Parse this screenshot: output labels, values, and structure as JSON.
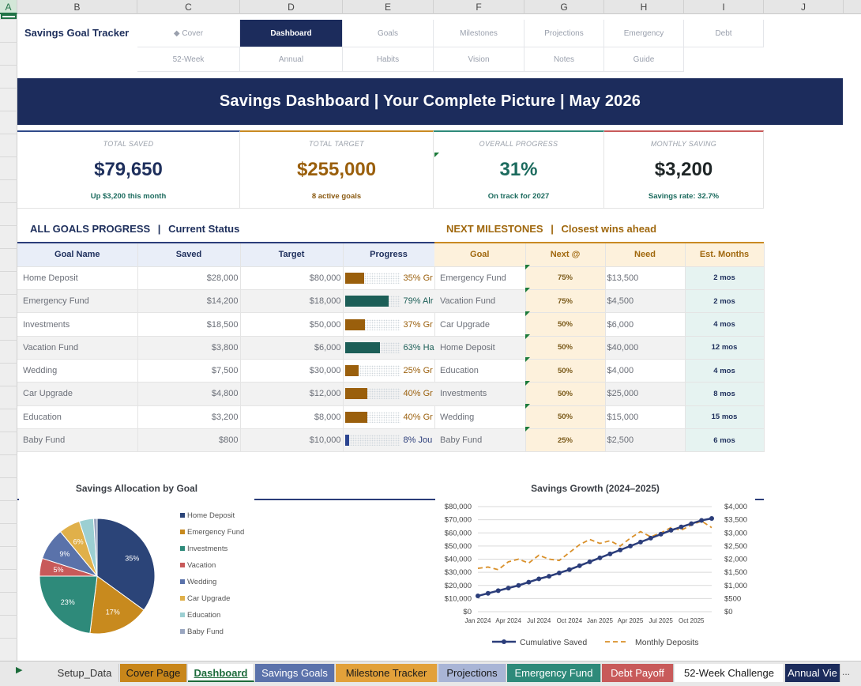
{
  "columns": [
    "A",
    "B",
    "C",
    "D",
    "E",
    "F",
    "G",
    "H",
    "I",
    "J"
  ],
  "brand": "Savings Goal Tracker",
  "nav": {
    "row1": [
      "◆ Cover",
      "Dashboard",
      "Goals",
      "Milestones",
      "Projections",
      "Emergency",
      "Debt"
    ],
    "row2": [
      "52-Week",
      "Annual",
      "Habits",
      "Vision",
      "Notes",
      "Guide"
    ],
    "active": "Dashboard"
  },
  "banner": "Savings Dashboard  |  Your Complete Picture  |  May 2026",
  "kpis": [
    {
      "label": "TOTAL SAVED",
      "value": "$79,650",
      "sub": "Up $3,200 this month",
      "color": "#1e2f5c",
      "sub_color": "#1c6b5e",
      "top": "#2f4a8a"
    },
    {
      "label": "TOTAL TARGET",
      "value": "$255,000",
      "sub": "8 active goals",
      "color": "#9a5f0c",
      "sub_color": "#8a5a12",
      "top": "#c98a22"
    },
    {
      "label": "OVERALL PROGRESS",
      "value": "31%",
      "sub": "On track for 2027",
      "color": "#1c6b5e",
      "sub_color": "#1c6b5e",
      "top": "#2e8a7a"
    },
    {
      "label": "MONTHLY SAVING",
      "value": "$3,200",
      "sub": "Savings rate: 32.7%",
      "color": "#1e2526",
      "sub_color": "#1c6b5e",
      "top": "#c85a5a"
    }
  ],
  "left_title": {
    "a": "ALL GOALS PROGRESS",
    "sep": "|",
    "b": "Current Status"
  },
  "right_title": {
    "a": "NEXT MILESTONES",
    "sep": "|",
    "b": "Closest wins ahead"
  },
  "goals_headers": [
    "Goal Name",
    "Saved",
    "Target",
    "Progress"
  ],
  "goals": [
    {
      "name": "Home Deposit",
      "saved": "$28,000",
      "target": "$80,000",
      "pct": 35,
      "label": "35%  Gr"
    },
    {
      "name": "Emergency Fund",
      "saved": "$14,200",
      "target": "$18,000",
      "pct": 79,
      "label": "79%  Alr"
    },
    {
      "name": "Investments",
      "saved": "$18,500",
      "target": "$50,000",
      "pct": 37,
      "label": "37%  Gr"
    },
    {
      "name": "Vacation Fund",
      "saved": "$3,800",
      "target": "$6,000",
      "pct": 63,
      "label": "63%  Ha"
    },
    {
      "name": "Wedding",
      "saved": "$7,500",
      "target": "$30,000",
      "pct": 25,
      "label": "25%  Gr"
    },
    {
      "name": "Car Upgrade",
      "saved": "$4,800",
      "target": "$12,000",
      "pct": 40,
      "label": "40%  Gr"
    },
    {
      "name": "Education",
      "saved": "$3,200",
      "target": "$8,000",
      "pct": 40,
      "label": "40%  Gr"
    },
    {
      "name": "Baby Fund",
      "saved": "$800",
      "target": "$10,000",
      "pct": 8,
      "label": "8%  Jou"
    }
  ],
  "milestone_headers": [
    "Goal",
    "Next @",
    "Need",
    "Est. Months"
  ],
  "milestones": [
    {
      "goal": "Emergency Fund",
      "next": "75%",
      "need": "$13,500",
      "months": "2 mos"
    },
    {
      "goal": "Vacation Fund",
      "next": "75%",
      "need": "$4,500",
      "months": "2 mos"
    },
    {
      "goal": "Car Upgrade",
      "next": "50%",
      "need": "$6,000",
      "months": "4 mos"
    },
    {
      "goal": "Home Deposit",
      "next": "50%",
      "need": "$40,000",
      "months": "12 mos"
    },
    {
      "goal": "Education",
      "next": "50%",
      "need": "$4,000",
      "months": "4 mos"
    },
    {
      "goal": "Investments",
      "next": "50%",
      "need": "$25,000",
      "months": "8 mos"
    },
    {
      "goal": "Wedding",
      "next": "50%",
      "need": "$15,000",
      "months": "15 mos"
    },
    {
      "goal": "Baby Fund",
      "next": "25%",
      "need": "$2,500",
      "months": "6 mos"
    }
  ],
  "colors": {
    "navy": "#1c2c5c",
    "gold": "#9a5f0c",
    "teal": "#1c5e57",
    "bar_brown": "#9a5f0c",
    "bar_blue": "#2b4490"
  },
  "chart_data": [
    {
      "type": "pie",
      "title": "Savings Allocation by Goal",
      "categories": [
        "Home Deposit",
        "Emergency Fund",
        "Investments",
        "Vacation",
        "Wedding",
        "Car Upgrade",
        "Education",
        "Baby Fund"
      ],
      "values": [
        35,
        17,
        23,
        5,
        9,
        6,
        4,
        1
      ],
      "slice_labels": [
        "35%",
        "17%",
        "23%",
        "5%",
        "9%",
        "6%",
        "",
        ""
      ],
      "colors": [
        "#2b4478",
        "#c88a1e",
        "#2e8a7a",
        "#c85a5a",
        "#5a72aa",
        "#e0b04a",
        "#9ccfd2",
        "#9aa6c0"
      ],
      "legend": "right"
    },
    {
      "type": "line",
      "title": "Savings Growth (2024–2025)",
      "x": [
        "Jan 2024",
        "Feb 2024",
        "Mar 2024",
        "Apr 2024",
        "May 2024",
        "Jun 2024",
        "Jul 2024",
        "Aug 2024",
        "Sep 2024",
        "Oct 2024",
        "Nov 2024",
        "Dec 2024",
        "Jan 2025",
        "Feb 2025",
        "Mar 2025",
        "Apr 2025",
        "May 2025",
        "Jun 2025",
        "Jul 2025",
        "Aug 2025",
        "Sep 2025",
        "Oct 2025",
        "Nov 2025",
        "Dec 2025"
      ],
      "x_tick_labels": [
        "Jan 2024",
        "Apr 2024",
        "Jul 2024",
        "Oct 2024",
        "Jan 2025",
        "Apr 2025",
        "Jul 2025",
        "Oct 2025"
      ],
      "series": [
        {
          "name": "Cumulative Saved",
          "axis": "left",
          "color": "#2b3d7a",
          "values": [
            12000,
            14000,
            16000,
            18000,
            20000,
            22500,
            25000,
            27000,
            29500,
            32000,
            35000,
            38000,
            41000,
            44000,
            47000,
            50000,
            53000,
            56000,
            59000,
            62000,
            64500,
            67000,
            69500,
            71000
          ]
        },
        {
          "name": "Monthly Deposits",
          "axis": "right",
          "color": "#d9902a",
          "values": [
            1650,
            1700,
            1600,
            1900,
            2000,
            1850,
            2150,
            2000,
            1950,
            2250,
            2550,
            2750,
            2600,
            2700,
            2500,
            2800,
            3050,
            2850,
            3000,
            3200,
            3100,
            3300,
            3450,
            3200
          ]
        }
      ],
      "ylim_left": [
        0,
        80000
      ],
      "ylim_right": [
        0,
        4000
      ],
      "y_left_ticks": [
        "$0",
        "$10,000",
        "$20,000",
        "$30,000",
        "$40,000",
        "$50,000",
        "$60,000",
        "$70,000",
        "$80,000"
      ],
      "y_right_ticks": [
        "$0",
        "$500",
        "$1,000",
        "$1,500",
        "$2,000",
        "$2,500",
        "$3,000",
        "$3,500",
        "$4,000"
      ],
      "legend": "bottom",
      "grid": true
    }
  ],
  "tabs": [
    "Setup_Data",
    "Cover Page",
    "Dashboard",
    "Savings Goals",
    "Milestone Tracker",
    "Projections",
    "Emergency Fund",
    "Debt Payoff",
    "52-Week Challenge",
    "Annual Vie"
  ],
  "active_tab": "Dashboard",
  "scroll_arrow": "▶",
  "tabs_more": "..."
}
